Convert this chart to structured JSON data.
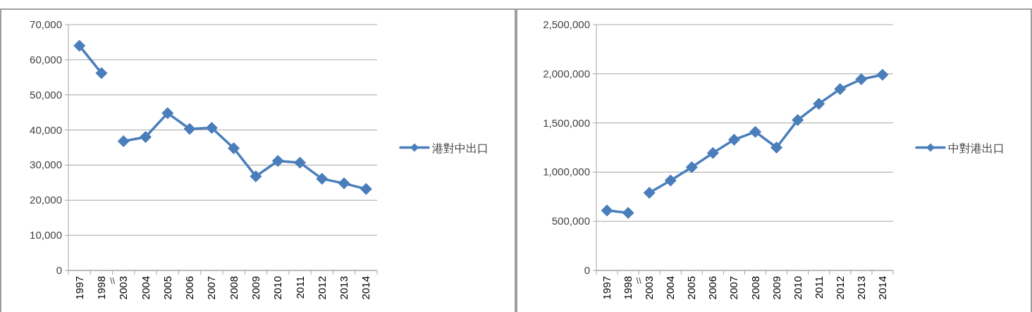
{
  "chart_data": [
    {
      "type": "line",
      "categories": [
        "1997",
        "1998",
        "2003",
        "2004",
        "2005",
        "2006",
        "2007",
        "2008",
        "2009",
        "2010",
        "2011",
        "2012",
        "2013",
        "2014"
      ],
      "series": [
        {
          "name": "港對中出口",
          "color": "#4a7ebb",
          "values": [
            64000,
            56200,
            null,
            null,
            null,
            null,
            null,
            null,
            null,
            null,
            null,
            null,
            null,
            null
          ]
        },
        {
          "color": "#4a7ebb",
          "values": [
            null,
            null,
            36800,
            38000,
            44800,
            40300,
            40600,
            34800,
            26800,
            31200,
            30700,
            26100,
            24800,
            23200
          ]
        }
      ],
      "ylim": [
        0,
        70000
      ],
      "yticks": [
        {
          "value": 0,
          "label": "0"
        },
        {
          "value": 10000,
          "label": "10,000"
        },
        {
          "value": 20000,
          "label": "20,000"
        },
        {
          "value": 30000,
          "label": "30,000"
        },
        {
          "value": 40000,
          "label": "40,000"
        },
        {
          "value": 50000,
          "label": "50,000"
        },
        {
          "value": 60000,
          "label": "60,000"
        },
        {
          "value": 70000,
          "label": "70,000"
        }
      ],
      "annotations": [
        "\\\\"
      ],
      "grid": "y",
      "legend": "right",
      "marker": "diamond",
      "line_style": "solid"
    },
    {
      "type": "line",
      "categories": [
        "1997",
        "1998",
        "2003",
        "2004",
        "2005",
        "2006",
        "2007",
        "2008",
        "2009",
        "2010",
        "2011",
        "2012",
        "2013",
        "2014"
      ],
      "series": [
        {
          "name": "中對港出口",
          "color": "#4a7ebb",
          "values": [
            610000,
            585000,
            null,
            null,
            null,
            null,
            null,
            null,
            null,
            null,
            null,
            null,
            null,
            null
          ]
        },
        {
          "color": "#4a7ebb",
          "values": [
            null,
            null,
            790000,
            915000,
            1050000,
            1195000,
            1330000,
            1410000,
            1250000,
            1530000,
            1695000,
            1845000,
            1945000,
            1990000
          ]
        }
      ],
      "ylim": [
        0,
        2500000
      ],
      "yticks": [
        {
          "value": 0,
          "label": "0"
        },
        {
          "value": 500000,
          "label": "500,000"
        },
        {
          "value": 1000000,
          "label": "1,000,000"
        },
        {
          "value": 1500000,
          "label": "1,500,000"
        },
        {
          "value": 2000000,
          "label": "2,000,000"
        },
        {
          "value": 2500000,
          "label": "2,500,000"
        }
      ],
      "annotations": [
        "\\\\"
      ],
      "grid": "y",
      "legend": "right",
      "marker": "diamond",
      "line_style": "solid"
    }
  ]
}
